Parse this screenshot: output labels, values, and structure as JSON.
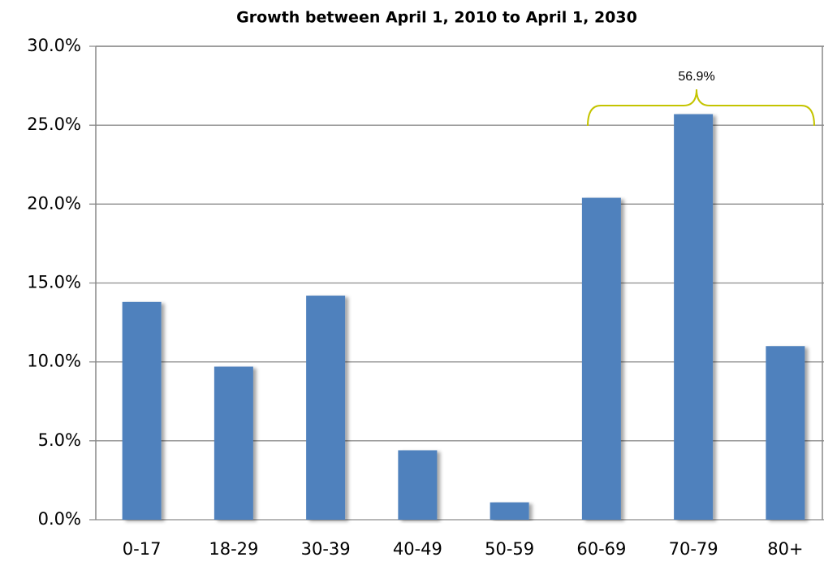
{
  "chart_data": {
    "type": "bar",
    "title": "Growth between April 1, 2010 to April 1, 2030",
    "categories": [
      "0-17",
      "18-29",
      "30-39",
      "40-49",
      "50-59",
      "60-69",
      "70-79",
      "80+"
    ],
    "values": [
      13.8,
      9.7,
      14.2,
      4.4,
      1.1,
      20.4,
      25.7,
      11.0
    ],
    "color": "#4f81bd",
    "ylim": [
      0,
      30
    ],
    "yticks": [
      {
        "value": 0,
        "label": "0.0%"
      },
      {
        "value": 5,
        "label": "5.0%"
      },
      {
        "value": 10,
        "label": "10.0%"
      },
      {
        "value": 15,
        "label": "15.0%"
      },
      {
        "value": 20,
        "label": "20.0%"
      },
      {
        "value": 25,
        "label": "25.0%"
      },
      {
        "value": 30,
        "label": "30.0%"
      }
    ],
    "grid": true,
    "annotation": "56.9%"
  }
}
